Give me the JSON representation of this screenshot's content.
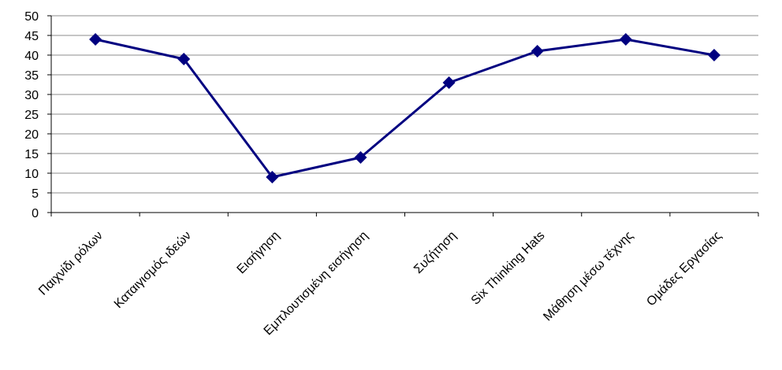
{
  "chart_data": {
    "type": "line",
    "title": "",
    "xlabel": "",
    "ylabel": "",
    "categories": [
      "Παιχνίδι ρόλων",
      "Καταιγισμός ιδεών",
      "Εισήγηση",
      "Εμπλουτισμένη εισήγηση",
      "Συζήτηση",
      "Six Thinking Hats",
      "Μάθηση μέσω τέχνης",
      "Ομάδες Εργασίας"
    ],
    "series": [
      {
        "values": [
          44,
          39,
          9,
          14,
          33,
          41,
          44,
          40
        ]
      }
    ],
    "ylim": [
      0,
      50
    ],
    "yticks": [
      0,
      5,
      10,
      15,
      20,
      25,
      30,
      35,
      40,
      45,
      50
    ],
    "grid": true,
    "legend": "none",
    "marker": "diamond",
    "colors": {
      "series": "#000080",
      "grid": "#8c8c8c",
      "axis": "#000000"
    }
  }
}
